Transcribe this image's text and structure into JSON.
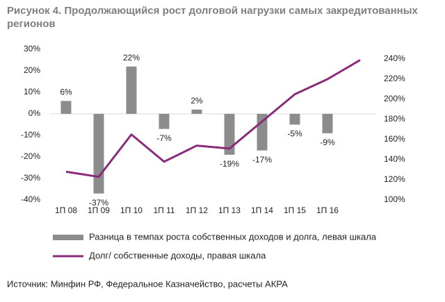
{
  "chart_data": {
    "type": "bar",
    "title": "Рисунок 4. Продолжающийся рост долговой нагрузки самых закредитованных регионов",
    "source": "Источник: Минфин РФ, Федеральное Казначейство, расчеты АКРА",
    "categories": [
      "1П 08",
      "1П 09",
      "1П 10",
      "1П 11",
      "1П 12",
      "1П 13",
      "1П 14",
      "1П 15",
      "1П 16",
      null
    ],
    "series": [
      {
        "name": "Разница в темпах роста собственных доходов и долга, левая шкала",
        "type": "bar",
        "color": "#8c8c8c",
        "values": [
          6,
          -37,
          22,
          -7,
          2,
          -19,
          -17,
          -5,
          -9,
          null
        ],
        "value_labels": [
          "6%",
          "-37%",
          "22%",
          "-7%",
          "2%",
          "-19%",
          "-17%",
          "-5%",
          "-9%",
          null
        ]
      },
      {
        "name": "Долг/ собственные доходы, правая шкала",
        "type": "line",
        "axis": "y2",
        "color": "#8b2a7a",
        "values": [
          128,
          123,
          165,
          138,
          154,
          151,
          178,
          205,
          220,
          239
        ]
      }
    ],
    "ylim": [
      -40,
      30
    ],
    "yticks": [
      {
        "value": -40,
        "label": "-40%"
      },
      {
        "value": -30,
        "label": "-30%"
      },
      {
        "value": -20,
        "label": "-20%"
      },
      {
        "value": -10,
        "label": "-10%"
      },
      {
        "value": 0,
        "label": "0%"
      },
      {
        "value": 10,
        "label": "10%"
      },
      {
        "value": 20,
        "label": "20%"
      },
      {
        "value": 30,
        "label": "30%"
      }
    ],
    "y2lim": [
      100,
      240
    ],
    "y2ticks": [
      {
        "value": 100,
        "label": "100%"
      },
      {
        "value": 120,
        "label": "120%"
      },
      {
        "value": 140,
        "label": "140%"
      },
      {
        "value": 160,
        "label": "160%"
      },
      {
        "value": 180,
        "label": "180%"
      },
      {
        "value": 200,
        "label": "200%"
      },
      {
        "value": 220,
        "label": "220%"
      },
      {
        "value": 240,
        "label": "240%"
      }
    ],
    "grid": false
  }
}
